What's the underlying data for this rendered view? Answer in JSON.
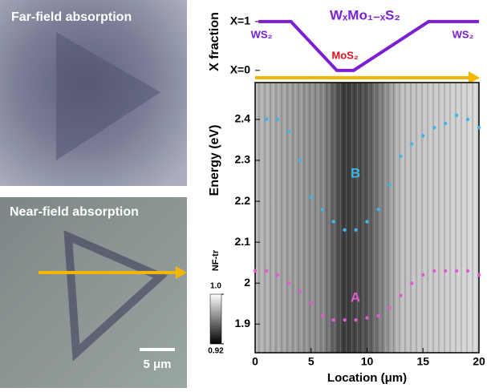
{
  "images": {
    "far_field": {
      "title": "Far-field absorption"
    },
    "near_field": {
      "title": "Near-field absorption",
      "scale_bar": "5 μm"
    }
  },
  "chart_data": [
    {
      "type": "line",
      "title": "WₓMo₁₋ₓS₂",
      "ylabel": "X fraction",
      "x": [
        0.3,
        3.2,
        7.3,
        8.8,
        15.5,
        20
      ],
      "series": [
        {
          "name": "X fraction",
          "color": "#7a1fd6",
          "values": [
            1,
            1,
            0,
            0,
            1,
            1
          ]
        }
      ],
      "annotations": [
        "WS₂",
        "MoS₂",
        "WS₂"
      ],
      "xlim": [
        0,
        20
      ],
      "ylim": [
        -0.2,
        1.36
      ],
      "yticks": [
        {
          "value": 1,
          "label": "X=1"
        },
        {
          "value": 0,
          "label": "X=0"
        }
      ]
    },
    {
      "type": "scatter",
      "xlabel": "Location (μm)",
      "ylabel": "Energy (eV)",
      "x": [
        0,
        1,
        2,
        3,
        4,
        5,
        6,
        7,
        8,
        9,
        10,
        11,
        12,
        13,
        14,
        15,
        16,
        17,
        18,
        19,
        20
      ],
      "series": [
        {
          "name": "A",
          "color": "#e05bd0",
          "values": [
            2.03,
            2.03,
            2.02,
            2.0,
            1.98,
            1.95,
            1.92,
            1.91,
            1.91,
            1.91,
            1.915,
            1.92,
            1.94,
            1.97,
            2.0,
            2.02,
            2.03,
            2.03,
            2.03,
            2.03,
            2.02
          ]
        },
        {
          "name": "B",
          "color": "#3fb6e6",
          "values": [
            null,
            2.4,
            2.4,
            2.37,
            2.3,
            2.21,
            2.18,
            2.15,
            2.13,
            2.13,
            2.15,
            2.18,
            2.24,
            2.31,
            2.34,
            2.36,
            2.38,
            2.39,
            2.41,
            2.4,
            2.38
          ]
        }
      ],
      "xlim": [
        0,
        20
      ],
      "ylim": [
        1.83,
        2.49
      ],
      "xticks": [
        0,
        5,
        10,
        15,
        20
      ],
      "yticks": [
        1.9,
        2.0,
        2.1,
        2.2,
        2.3,
        2.4
      ],
      "colorbar": {
        "label": "NF-tr",
        "ticks": [
          {
            "value": 1.0,
            "label": "1.0"
          },
          {
            "value": 0.92,
            "label": "0.92"
          }
        ]
      }
    }
  ]
}
